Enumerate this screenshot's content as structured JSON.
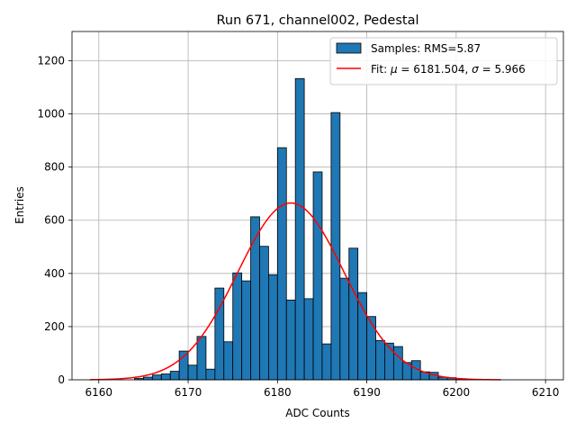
{
  "chart_data": {
    "type": "bar",
    "title": "Run 671, channel002, Pedestal",
    "xlabel": "ADC Counts",
    "ylabel": "Entries",
    "xlim": [
      6157,
      6212
    ],
    "ylim": [
      0,
      1310
    ],
    "xticks": [
      6160,
      6170,
      6180,
      6190,
      6200,
      6210
    ],
    "yticks": [
      0,
      200,
      400,
      600,
      800,
      1000,
      1200
    ],
    "grid": true,
    "legend_position": "top-right",
    "colors": {
      "bars": "#1f77b4",
      "bar_edge": "#000000",
      "fit": "#ff0000",
      "grid": "#b0b0b0"
    },
    "histogram": {
      "name": "Samples: RMS=5.87",
      "bin_width": 1,
      "bins": [
        {
          "x": 6164,
          "count": 5
        },
        {
          "x": 6165,
          "count": 10
        },
        {
          "x": 6166,
          "count": 18
        },
        {
          "x": 6167,
          "count": 22
        },
        {
          "x": 6168,
          "count": 32
        },
        {
          "x": 6169,
          "count": 108
        },
        {
          "x": 6170,
          "count": 55
        },
        {
          "x": 6171,
          "count": 163
        },
        {
          "x": 6172,
          "count": 40
        },
        {
          "x": 6173,
          "count": 345
        },
        {
          "x": 6174,
          "count": 143
        },
        {
          "x": 6175,
          "count": 402
        },
        {
          "x": 6176,
          "count": 372
        },
        {
          "x": 6177,
          "count": 613
        },
        {
          "x": 6178,
          "count": 502
        },
        {
          "x": 6179,
          "count": 395
        },
        {
          "x": 6180,
          "count": 873
        },
        {
          "x": 6181,
          "count": 300
        },
        {
          "x": 6182,
          "count": 1133
        },
        {
          "x": 6183,
          "count": 305
        },
        {
          "x": 6184,
          "count": 782
        },
        {
          "x": 6185,
          "count": 135
        },
        {
          "x": 6186,
          "count": 1005
        },
        {
          "x": 6187,
          "count": 382
        },
        {
          "x": 6188,
          "count": 495
        },
        {
          "x": 6189,
          "count": 328
        },
        {
          "x": 6190,
          "count": 238
        },
        {
          "x": 6191,
          "count": 148
        },
        {
          "x": 6192,
          "count": 138
        },
        {
          "x": 6193,
          "count": 125
        },
        {
          "x": 6194,
          "count": 65
        },
        {
          "x": 6195,
          "count": 72
        },
        {
          "x": 6196,
          "count": 30
        },
        {
          "x": 6197,
          "count": 28
        },
        {
          "x": 6198,
          "count": 10
        },
        {
          "x": 6199,
          "count": 8
        },
        {
          "x": 6200,
          "count": 4
        },
        {
          "x": 6201,
          "count": 2
        }
      ]
    },
    "fit": {
      "name": "Fit: μ = 6181.504, σ = 5.966",
      "name_prefix": "Fit: ",
      "mu_symbol": "μ",
      "mu_text": " = 6181.504, ",
      "sigma_symbol": "σ",
      "sigma_text": " = 5.966",
      "mu": 6181.504,
      "sigma": 5.966,
      "amplitude": 665,
      "x_range": [
        6159,
        6205
      ]
    }
  }
}
